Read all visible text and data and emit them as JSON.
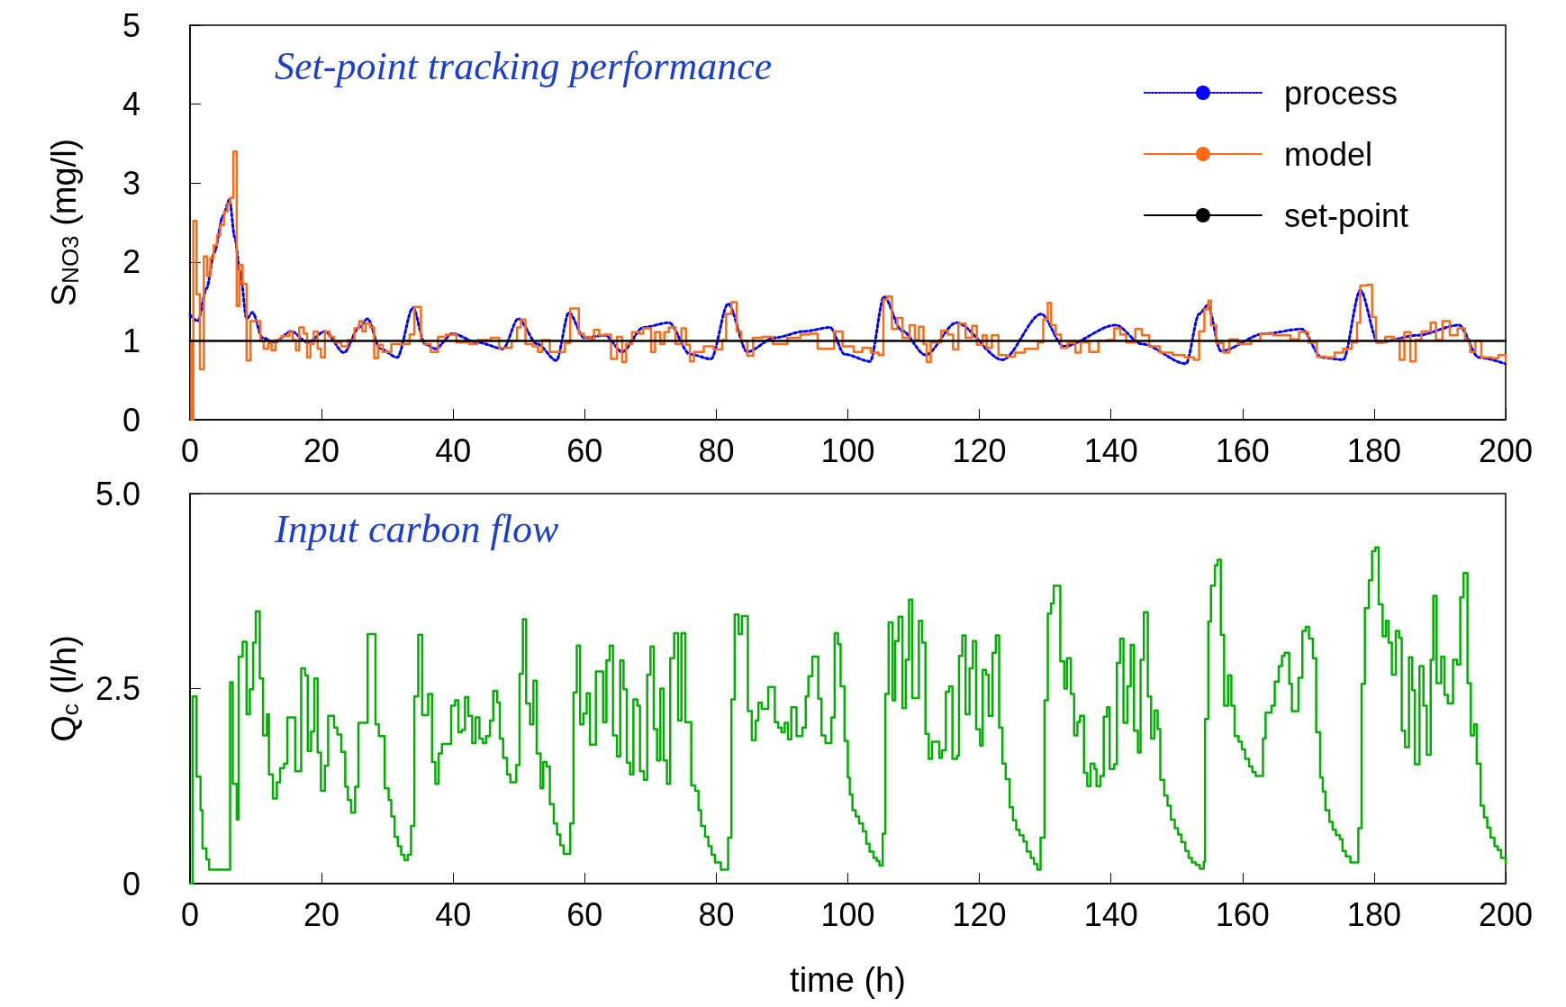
{
  "chart_data": [
    {
      "type": "line",
      "title": "Set-point tracking performance",
      "ylabel": "S$_{NO3}$ (mg/l)",
      "xlim": [
        0,
        200
      ],
      "xticks": [
        0,
        20,
        40,
        60,
        80,
        100,
        120,
        140,
        160,
        180,
        200
      ],
      "ylim": [
        0,
        5
      ],
      "yticks": [
        0,
        1,
        2,
        3,
        4,
        5
      ],
      "legend": "top right",
      "marker": "none",
      "series": [
        {
          "name": "process",
          "type": "line",
          "line_style": "dotted",
          "color": "#0000ff",
          "x": [
            0,
            1.2,
            2.5,
            3.7,
            5.0,
            6.0,
            6.8,
            7.6,
            8.6,
            9.5,
            11.0,
            12.8,
            15.4,
            17.9,
            20.5,
            23.4,
            25.7,
            27.0,
            28.9,
            31.5,
            33.9,
            35.7,
            37.3,
            39.9,
            43.7,
            47.6,
            49.9,
            52.8,
            55.7,
            57.6,
            59.9,
            63.1,
            65.7,
            68.9,
            72.8,
            76.0,
            79.2,
            81.8,
            84.7,
            88.9,
            93.4,
            97.3,
            99.5,
            103.4,
            105.5,
            108.2,
            111.8,
            116.5,
            123.5,
            129.4,
            132.8,
            140.7,
            144.7,
            151.4,
            153.4,
            154.7,
            156.7,
            163.3,
            169.0,
            172.0,
            175.3,
            177.9,
            180.6,
            186.6,
            192.9,
            195.9,
            199.9
          ],
          "values": [
            1.33,
            1.25,
            1.66,
            2.12,
            2.58,
            2.79,
            2.31,
            1.88,
            1.28,
            1.36,
            1.04,
            0.98,
            1.12,
            0.98,
            1.12,
            0.85,
            1.17,
            1.28,
            0.9,
            0.79,
            1.42,
            0.96,
            0.9,
            1.09,
            0.98,
            0.9,
            1.28,
            0.96,
            0.75,
            1.36,
            1.04,
            1.07,
            0.86,
            1.17,
            1.23,
            0.83,
            0.77,
            1.47,
            0.86,
            1.04,
            1.12,
            1.17,
            0.83,
            0.74,
            1.56,
            1.13,
            0.82,
            1.23,
            0.76,
            1.34,
            0.93,
            1.2,
            0.96,
            0.71,
            1.34,
            1.45,
            0.87,
            1.09,
            1.15,
            0.79,
            0.76,
            1.64,
            0.98,
            1.07,
            1.2,
            0.79,
            0.71
          ]
        },
        {
          "name": "model",
          "type": "step",
          "line_style": "solid",
          "color": "#ff6a13",
          "x": [
            0,
            0.2,
            0.5,
            1.0,
            1.5,
            2.1,
            2.6,
            3.1,
            3.6,
            4.1,
            4.6,
            5.2,
            5.7,
            6.1,
            6.6,
            7.1,
            7.5,
            8.0,
            8.6,
            9.2,
            10.7,
            11.2,
            11.9,
            12.4,
            13.0,
            13.9,
            15.1,
            15.6,
            16.1,
            16.6,
            17.3,
            17.8,
            18.3,
            18.8,
            19.4,
            19.9,
            20.5,
            21.2,
            21.9,
            23.0,
            24.0,
            25.0,
            25.7,
            26.2,
            26.7,
            27.4,
            28.0,
            28.6,
            29.3,
            30.6,
            33.4,
            34.1,
            35.1,
            35.7,
            36.6,
            37.7,
            38.9,
            40.5,
            42.5,
            43.7,
            45.7,
            47.0,
            48.9,
            49.7,
            50.3,
            51.0,
            52.1,
            52.9,
            53.5,
            54.7,
            57.0,
            57.8,
            59.1,
            59.9,
            60.9,
            61.4,
            62.2,
            63.1,
            64.0,
            64.9,
            65.7,
            66.3,
            67.2,
            68.3,
            68.9,
            70.1,
            70.7,
            71.5,
            72.1,
            72.8,
            73.8,
            74.7,
            75.4,
            76.0,
            76.6,
            78.1,
            79.6,
            80.9,
            81.5,
            82.3,
            83.1,
            83.8,
            84.7,
            85.6,
            87.0,
            88.6,
            90.8,
            92.8,
            94.1,
            95.4,
            97.9,
            99.2,
            100.9,
            102.2,
            103.5,
            104.7,
            105.4,
            106.0,
            106.7,
            107.5,
            108.3,
            109.4,
            110.2,
            110.8,
            111.5,
            112.0,
            112.6,
            114.2,
            115.2,
            116.0,
            116.8,
            117.9,
            118.9,
            119.6,
            120.5,
            121.1,
            121.9,
            122.9,
            124.1,
            125.4,
            126.9,
            128.9,
            129.7,
            130.4,
            130.9,
            131.6,
            132.4,
            133.4,
            134.6,
            135.4,
            136.7,
            138.1,
            139.4,
            140.5,
            141.4,
            142.3,
            143.7,
            144.7,
            145.8,
            147.4,
            149.4,
            151.2,
            152.6,
            153.4,
            154.2,
            154.8,
            155.2,
            156.0,
            157.1,
            158.0,
            159.3,
            161.3,
            162.7,
            164.7,
            167.3,
            168.6,
            170.0,
            171.3,
            172.6,
            174.0,
            175.3,
            176.6,
            177.4,
            177.9,
            178.9,
            179.7,
            180.3,
            181.7,
            183.0,
            183.9,
            184.6,
            185.5,
            186.3,
            187.2,
            188.6,
            189.4,
            190.4,
            191.5,
            192.7,
            193.8,
            194.6,
            195.4,
            196.3,
            197.9,
            198.9,
            200
          ],
          "values": [
            1.0,
            0.0,
            2.52,
            1.59,
            0.64,
            2.07,
            1.82,
            2.05,
            2.21,
            2.34,
            2.47,
            2.64,
            2.74,
            2.81,
            3.4,
            1.44,
            1.96,
            1.72,
            0.75,
            1.25,
            1.0,
            0.9,
            0.97,
            0.88,
            1.01,
            1.06,
            1.11,
            1.01,
            0.88,
            1.17,
            1.09,
            0.79,
            0.96,
            1.12,
            0.9,
            0.79,
            1.12,
            1.05,
            0.98,
            0.93,
            1.01,
            1.16,
            1.25,
            1.12,
            1.22,
            1.17,
            0.78,
            0.95,
            0.86,
            0.96,
            1.08,
            1.43,
            1.0,
            0.96,
            0.86,
            1.05,
            1.08,
            0.98,
            0.96,
            1.01,
            1.04,
            0.91,
            1.0,
            1.17,
            1.27,
            0.96,
            0.93,
            0.86,
            1.01,
            0.86,
            0.97,
            1.41,
            1.09,
            1.05,
            1.02,
            1.14,
            1.07,
            1.08,
            0.77,
            1.05,
            0.73,
            0.96,
            1.11,
            1.09,
            1.16,
            0.86,
            1.11,
            0.96,
            1.11,
            1.17,
            0.96,
            1.16,
            0.95,
            0.74,
            0.86,
            0.93,
            0.89,
            1.01,
            1.34,
            1.49,
            1.12,
            1.0,
            0.81,
            1.04,
            1.05,
            0.96,
            1.04,
            1.08,
            1.09,
            0.9,
            1.12,
            0.93,
            0.86,
            0.91,
            0.85,
            0.82,
            1.52,
            1.56,
            1.15,
            1.29,
            1.04,
            1.2,
            1.01,
            1.18,
            0.96,
            0.73,
            0.98,
            1.13,
            1.08,
            0.89,
            1.22,
            1.04,
            1.19,
            0.95,
            1.07,
            0.91,
            1.07,
            0.82,
            0.8,
            0.85,
            0.9,
            0.98,
            1.27,
            1.48,
            1.2,
            1.08,
            0.91,
            0.97,
            0.85,
            0.98,
            0.86,
            1.0,
            1.01,
            1.16,
            1.08,
            0.98,
            1.15,
            1.07,
            0.93,
            0.85,
            0.82,
            0.79,
            0.76,
            1.12,
            1.4,
            1.51,
            1.2,
            0.97,
            0.85,
            1.02,
            0.96,
            1.0,
            1.09,
            1.07,
            1.02,
            1.11,
            0.98,
            0.8,
            0.79,
            0.85,
            0.9,
            0.98,
            1.23,
            1.7,
            1.71,
            1.3,
            0.98,
            1.05,
            1.01,
            0.76,
            1.11,
            0.74,
            1.01,
            1.12,
            1.23,
            1.01,
            1.25,
            1.07,
            1.16,
            1.01,
            0.86,
            1.0,
            0.79,
            0.78,
            0.82,
            0.74
          ]
        },
        {
          "name": "set-point",
          "type": "line",
          "line_style": "solid",
          "color": "#000000",
          "x": [
            0,
            200
          ],
          "values": [
            1,
            1
          ]
        }
      ]
    },
    {
      "type": "step",
      "title": "Input carbon flow",
      "ylabel": "Q$_{c}$ (l/h)",
      "xlabel": "time (h)",
      "xlim": [
        0,
        200
      ],
      "xticks": [
        0,
        20,
        40,
        60,
        80,
        100,
        120,
        140,
        160,
        180,
        200
      ],
      "ylim": [
        0,
        5
      ],
      "yticks": [
        0,
        2.5,
        {
          "value": 5,
          "label": "5.0"
        }
      ],
      "marker": "none",
      "series": [
        {
          "color": "#00b000",
          "x": [
            0,
            0.4,
            1.0,
            1.6,
            1.9,
            2.5,
            2.9,
            6.1,
            6.5,
            7.1,
            7.4,
            8.0,
            8.6,
            9.1,
            9.6,
            10.0,
            10.6,
            11.1,
            11.7,
            12.0,
            12.6,
            13.2,
            13.7,
            14.3,
            14.8,
            16.0,
            16.9,
            17.5,
            17.9,
            18.4,
            18.9,
            19.4,
            19.9,
            20.5,
            21.0,
            21.9,
            22.4,
            23.0,
            23.6,
            24.0,
            24.5,
            25.1,
            25.6,
            27.0,
            28.2,
            28.7,
            29.6,
            30.2,
            30.6,
            31.1,
            31.6,
            32.1,
            32.6,
            33.1,
            33.6,
            34.1,
            34.7,
            35.3,
            36.2,
            36.8,
            37.3,
            37.8,
            38.3,
            39.7,
            40.3,
            40.8,
            41.3,
            41.8,
            42.3,
            42.9,
            43.4,
            44.0,
            44.5,
            45.0,
            45.6,
            46.1,
            46.7,
            47.1,
            47.6,
            48.2,
            48.7,
            49.6,
            50.1,
            50.6,
            51.1,
            51.7,
            52.2,
            52.7,
            53.3,
            53.7,
            54.2,
            54.7,
            55.3,
            55.8,
            56.3,
            56.8,
            57.8,
            58.3,
            58.8,
            59.3,
            59.8,
            60.3,
            60.8,
            61.7,
            62.8,
            63.3,
            63.8,
            64.3,
            64.9,
            65.4,
            65.9,
            66.4,
            66.9,
            67.4,
            68.0,
            68.4,
            69.0,
            69.5,
            70.0,
            70.5,
            71.0,
            71.5,
            72.0,
            72.5,
            73.0,
            73.6,
            74.2,
            74.7,
            75.3,
            76.2,
            76.8,
            77.3,
            77.7,
            78.3,
            78.8,
            79.3,
            79.8,
            80.7,
            81.8,
            82.3,
            82.8,
            83.4,
            83.9,
            84.8,
            85.4,
            86.0,
            86.4,
            86.9,
            87.9,
            88.9,
            89.4,
            89.9,
            90.4,
            90.9,
            91.4,
            92.2,
            93.1,
            93.6,
            94.0,
            94.6,
            95.5,
            96.0,
            96.6,
            97.5,
            98.0,
            98.5,
            98.9,
            99.5,
            100.0,
            100.3,
            100.7,
            101.2,
            101.7,
            102.3,
            102.8,
            103.3,
            103.9,
            104.4,
            104.8,
            105.3,
            105.7,
            106.2,
            106.8,
            107.2,
            107.7,
            108.3,
            108.8,
            109.3,
            109.8,
            110.8,
            111.3,
            111.8,
            112.3,
            112.8,
            113.9,
            114.3,
            114.9,
            115.4,
            115.9,
            116.6,
            116.9,
            117.4,
            117.9,
            118.5,
            119.0,
            119.5,
            120.1,
            120.5,
            121.0,
            121.4,
            122.0,
            122.5,
            123.0,
            123.5,
            124.0,
            124.6,
            125.1,
            125.6,
            126.1,
            126.7,
            127.2,
            127.8,
            128.3,
            128.8,
            129.3,
            129.9,
            130.4,
            130.9,
            131.3,
            132.3,
            132.9,
            133.3,
            133.9,
            134.4,
            134.9,
            135.3,
            135.9,
            136.4,
            136.9,
            137.5,
            137.8,
            138.4,
            138.9,
            139.4,
            139.8,
            140.5,
            140.9,
            141.4,
            141.9,
            142.5,
            143.0,
            143.5,
            144.1,
            144.5,
            145.0,
            145.6,
            146.1,
            146.6,
            147.1,
            147.5,
            148.1,
            148.6,
            149.1,
            149.7,
            150.2,
            150.7,
            151.3,
            151.8,
            152.3,
            152.9,
            153.5,
            154.1,
            154.3,
            154.8,
            155.2,
            155.8,
            156.2,
            156.7,
            157.2,
            157.8,
            158.3,
            158.8,
            159.4,
            159.9,
            160.4,
            161.0,
            161.5,
            162.0,
            163.1,
            163.5,
            164.4,
            164.9,
            165.5,
            166.0,
            166.4,
            167.1,
            167.5,
            168.5,
            169.1,
            169.6,
            170.1,
            170.7,
            171.2,
            171.8,
            172.2,
            172.6,
            173.2,
            173.7,
            174.2,
            174.8,
            175.2,
            175.7,
            176.4,
            177.6,
            178.1,
            178.6,
            179.2,
            179.7,
            180.2,
            180.7,
            181.3,
            181.8,
            182.2,
            182.7,
            183.3,
            183.8,
            184.2,
            184.7,
            185.3,
            185.8,
            186.2,
            186.9,
            187.5,
            188.0,
            188.6,
            189.0,
            189.5,
            190.2,
            190.7,
            191.2,
            192.0,
            192.6,
            193.1,
            193.6,
            194.2,
            194.7,
            195.2,
            195.6,
            196.2,
            196.7,
            197.2,
            197.7,
            198.3,
            198.8,
            199.3,
            200
          ],
          "values": [
            0.0,
            2.4,
            1.37,
            0.94,
            0.45,
            0.31,
            0.18,
            2.58,
            1.28,
            0.82,
            2.91,
            3.1,
            2.17,
            2.49,
            3.09,
            3.49,
            2.63,
            1.9,
            2.17,
            1.4,
            1.09,
            1.3,
            1.48,
            1.54,
            2.13,
            1.44,
            2.76,
            2.67,
            1.7,
            1.95,
            2.63,
            1.68,
            1.19,
            1.51,
            2.15,
            2.0,
            1.91,
            1.69,
            1.24,
            1.07,
            0.91,
            1.24,
            2.06,
            3.2,
            2.04,
            1.89,
            1.22,
            1.07,
            0.86,
            0.6,
            0.48,
            0.37,
            0.3,
            0.37,
            0.74,
            2.4,
            3.19,
            2.16,
            2.43,
            1.56,
            1.28,
            1.67,
            1.79,
            2.28,
            2.35,
            1.94,
            1.97,
            2.39,
            2.15,
            1.8,
            2.13,
            1.86,
            1.8,
            1.89,
            2.09,
            2.47,
            2.32,
            1.86,
            1.61,
            1.4,
            1.3,
            1.52,
            2.69,
            3.39,
            2.31,
            2.04,
            2.6,
            1.67,
            1.22,
            1.56,
            1.5,
            1.02,
            0.77,
            0.63,
            0.49,
            0.38,
            0.77,
            2.45,
            3.05,
            2.04,
            2.18,
            2.44,
            1.78,
            2.72,
            2.07,
            2.86,
            3.05,
            1.9,
            1.63,
            2.86,
            2.49,
            1.55,
            1.4,
            2.36,
            2.28,
            1.44,
            1.33,
            2.68,
            3.04,
            1.98,
            1.58,
            2.5,
            1.58,
            1.28,
            2.89,
            3.21,
            2.09,
            3.21,
            2.07,
            1.26,
            1.19,
            0.94,
            0.74,
            0.6,
            0.48,
            0.37,
            0.27,
            0.18,
            0.59,
            2.36,
            3.45,
            3.2,
            3.43,
            2.21,
            1.84,
            2.09,
            2.32,
            2.24,
            2.52,
            2.07,
            2.0,
            1.94,
            2.06,
            1.85,
            2.26,
            1.89,
            2.0,
            2.4,
            2.66,
            2.91,
            2.37,
            1.9,
            1.8,
            2.13,
            3.21,
            3.07,
            2.53,
            1.83,
            1.36,
            1.14,
            0.94,
            0.86,
            0.77,
            0.67,
            0.51,
            0.41,
            0.33,
            0.29,
            0.23,
            0.64,
            2.43,
            3.35,
            2.35,
            3.11,
            3.42,
            2.25,
            2.87,
            3.64,
            2.38,
            3.37,
            3.09,
            1.92,
            1.6,
            1.82,
            1.61,
            1.71,
            2.46,
            2.53,
            1.6,
            1.64,
            2.92,
            3.18,
            2.17,
            2.76,
            3.11,
            1.98,
            1.77,
            2.74,
            2.68,
            2.15,
            2.96,
            3.18,
            2.0,
            1.54,
            1.34,
            0.98,
            0.81,
            0.69,
            0.62,
            0.54,
            0.41,
            0.33,
            0.25,
            0.18,
            0.59,
            2.35,
            3.46,
            3.59,
            3.82,
            2.85,
            2.5,
            2.89,
            2.43,
            1.9,
            2.07,
            2.15,
            1.42,
            1.25,
            1.54,
            1.47,
            1.25,
            1.38,
            2.14,
            2.26,
            1.47,
            1.53,
            2.83,
            3.14,
            2.06,
            2.53,
            3.06,
            1.96,
            1.68,
            2.87,
            3.48,
            2.4,
            1.86,
            2.22,
            1.98,
            1.33,
            1.13,
            1.0,
            0.82,
            0.71,
            0.63,
            0.53,
            0.42,
            0.33,
            0.27,
            0.24,
            0.19,
            0.28,
            2.11,
            3.36,
            3.82,
            4.08,
            4.15,
            3.19,
            2.28,
            2.67,
            2.28,
            1.89,
            1.82,
            1.72,
            1.6,
            1.5,
            1.43,
            1.38,
            1.86,
            2.19,
            2.28,
            2.59,
            2.79,
            2.92,
            2.96,
            2.56,
            2.21,
            2.64,
            3.24,
            3.29,
            3.14,
            2.89,
            1.94,
            1.36,
            1.18,
            0.94,
            0.79,
            0.69,
            0.62,
            0.57,
            0.42,
            0.35,
            0.27,
            0.71,
            2.56,
            3.53,
            3.89,
            4.26,
            4.31,
            3.58,
            3.17,
            3.37,
            3.09,
            2.68,
            3.24,
            3.15,
            1.96,
            1.75,
            2.9,
            2.48,
            1.53,
            2.79,
            2.28,
            1.65,
            2.87,
            3.69,
            2.57,
            2.91,
            2.42,
            2.31,
            2.87,
            2.81,
            3.67,
            3.98,
            2.57,
            1.9,
            2.04,
            1.54,
            1.0,
            0.85,
            0.72,
            0.59,
            0.48,
            0.43,
            0.33,
            0.25
          ]
        }
      ]
    }
  ]
}
